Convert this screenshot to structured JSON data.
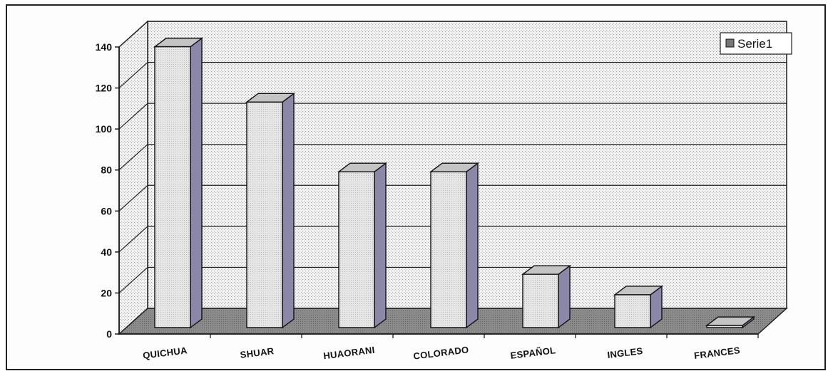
{
  "chart_data": {
    "type": "bar",
    "categories": [
      "QUICHUA",
      "SHUAR",
      "HUAORANI",
      "COLORADO",
      "ESPAÑOL",
      "INGLES",
      "FRANCES"
    ],
    "series": [
      {
        "name": "Serie1",
        "values": [
          137,
          110,
          76,
          76,
          26,
          16,
          1
        ]
      }
    ],
    "title": "",
    "xlabel": "",
    "ylabel": "",
    "ylim": [
      0,
      140
    ],
    "yticks": [
      "0",
      "20",
      "40",
      "60",
      "80",
      "100",
      "120",
      "140"
    ],
    "grid": true,
    "legend": "top-right",
    "style": "3d-column"
  },
  "colors": {
    "bar_front": "#e4e4e4",
    "bar_top": "#c4c4c4",
    "bar_side": "#8b87a8",
    "floor": "#8a8a8a",
    "wall": "#eeeeee",
    "grid": "#222222"
  }
}
